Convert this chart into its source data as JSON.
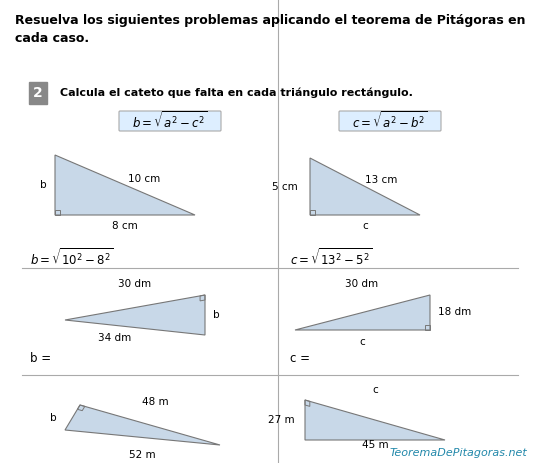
{
  "title_line1": "Resuelva los siguientes problemas aplicando el teorema de Pitágoras en",
  "title_line2": "cada caso.",
  "problem_number": "2",
  "problem_text": "Calcula el cateto que falta en cada triángulo rectángulo.",
  "formula_bg": "#ddeeff",
  "divider_color": "#aaaaaa",
  "triangle_fill": "#c8d8e8",
  "triangle_edge": "#777777",
  "watermark_text": "TeoremaDePitagoras.net",
  "watermark_color": "#2288aa",
  "number_bg": "#888888",
  "number_fg": "#ffffff"
}
